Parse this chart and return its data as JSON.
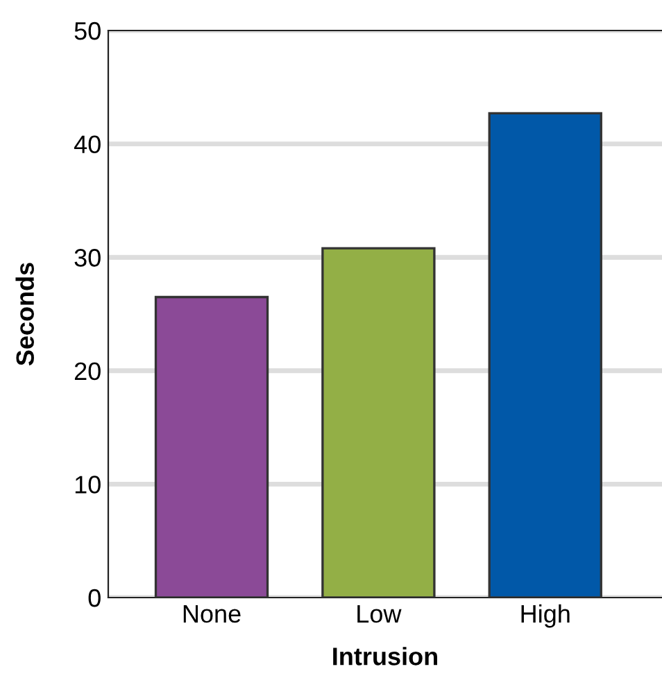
{
  "chart_data": {
    "type": "bar",
    "xlabel": "Intrusion",
    "ylabel": "Seconds",
    "categories": [
      "None",
      "Low",
      "High"
    ],
    "values": [
      26.5,
      30.8,
      42.7
    ],
    "colors": [
      "#8b4a97",
      "#93af46",
      "#0158a8"
    ],
    "ylim": [
      0,
      50
    ],
    "yticks": [
      0,
      10,
      20,
      30,
      40,
      50
    ],
    "grid": "y",
    "legend": false
  }
}
